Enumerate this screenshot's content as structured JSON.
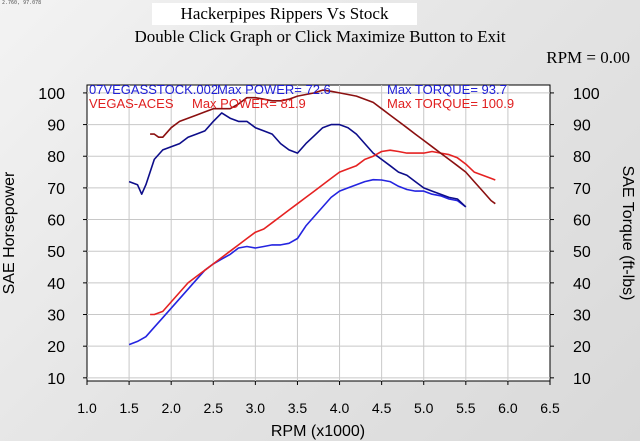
{
  "window": {
    "corner_label": "2.760, 97.078",
    "title": "Hackerpipes Rippers Vs Stock",
    "instruction": "Double Click Graph or Click Maximize Button to Exit",
    "rpm_label": "RPM =",
    "rpm_value": "0.00"
  },
  "chart_data": {
    "type": "line",
    "title": "Hackerpipes Rippers Vs Stock",
    "xlabel": "RPM (x1000)",
    "ylabel_left": "SAE Horsepower",
    "ylabel_right": "SAE Torque (ft-lbs)",
    "xlim": [
      1.0,
      6.5
    ],
    "ylim": [
      10,
      100
    ],
    "x_ticks": [
      "1.0",
      "1.5",
      "2.0",
      "2.5",
      "3.0",
      "3.5",
      "4.0",
      "4.5",
      "5.0",
      "5.5",
      "6.0",
      "6.5"
    ],
    "y_ticks": [
      "10",
      "20",
      "30",
      "40",
      "50",
      "60",
      "70",
      "80",
      "90",
      "100"
    ],
    "grid": true,
    "legend": [
      {
        "run": "07VEGASSTOCK.002",
        "power_text": "Max POWER= 72.6",
        "torque_text": "Max TORQUE= 93.7",
        "color": "#1f1fd6"
      },
      {
        "run": "VEGAS-ACES",
        "power_text": "Max POWER= 81.9",
        "torque_text": "Max TORQUE= 100.9",
        "color": "#e02020"
      }
    ],
    "series": [
      {
        "name": "07VEGASSTOCK.002 horsepower",
        "color": "#2424e0",
        "x": [
          1.5,
          1.6,
          1.7,
          1.8,
          1.9,
          2.0,
          2.1,
          2.2,
          2.3,
          2.4,
          2.5,
          2.6,
          2.7,
          2.8,
          2.9,
          3.0,
          3.1,
          3.2,
          3.3,
          3.4,
          3.5,
          3.6,
          3.7,
          3.8,
          3.9,
          4.0,
          4.1,
          4.2,
          4.3,
          4.4,
          4.5,
          4.6,
          4.7,
          4.8,
          4.9,
          5.0,
          5.1,
          5.2,
          5.3,
          5.4,
          5.5
        ],
        "y": [
          20.5,
          21.5,
          23,
          26,
          29,
          32,
          35,
          38,
          41,
          44,
          46,
          47.5,
          49,
          51,
          51.5,
          51,
          51.5,
          52,
          52,
          52.5,
          54,
          58,
          61,
          64,
          67,
          69,
          70,
          71,
          72,
          72.6,
          72.5,
          72,
          70.5,
          69.5,
          69,
          69,
          68,
          67.5,
          66.5,
          66,
          64
        ]
      },
      {
        "name": "07VEGASSTOCK.002 torque",
        "color": "#0d0d8a",
        "x": [
          1.5,
          1.6,
          1.65,
          1.7,
          1.8,
          1.9,
          2.0,
          2.1,
          2.2,
          2.3,
          2.4,
          2.5,
          2.6,
          2.7,
          2.8,
          2.9,
          3.0,
          3.1,
          3.2,
          3.3,
          3.4,
          3.5,
          3.6,
          3.7,
          3.8,
          3.9,
          4.0,
          4.1,
          4.2,
          4.3,
          4.4,
          4.5,
          4.6,
          4.7,
          4.8,
          4.9,
          5.0,
          5.1,
          5.2,
          5.3,
          5.4,
          5.5
        ],
        "y": [
          72,
          71,
          68,
          71,
          79,
          82,
          83,
          84,
          86,
          87,
          88,
          91,
          93.7,
          92,
          91,
          91,
          89,
          88,
          87,
          84,
          82,
          81,
          84,
          86.5,
          89,
          90,
          90,
          89,
          87,
          84,
          81,
          79,
          77,
          75,
          74,
          72,
          70,
          69,
          68,
          67,
          66.5,
          64
        ]
      },
      {
        "name": "VEGAS-ACES horsepower",
        "color": "#e52222",
        "x": [
          1.75,
          1.8,
          1.9,
          2.0,
          2.1,
          2.2,
          2.3,
          2.4,
          2.5,
          2.6,
          2.7,
          2.8,
          2.9,
          3.0,
          3.1,
          3.2,
          3.3,
          3.4,
          3.5,
          3.6,
          3.7,
          3.8,
          3.9,
          4.0,
          4.1,
          4.2,
          4.3,
          4.4,
          4.5,
          4.6,
          4.7,
          4.8,
          4.9,
          5.0,
          5.1,
          5.2,
          5.3,
          5.4,
          5.5,
          5.6,
          5.7,
          5.8,
          5.85
        ],
        "y": [
          30,
          30,
          31,
          34,
          37,
          40,
          42,
          44,
          46,
          48,
          50,
          52,
          54,
          56,
          57,
          59,
          61,
          63,
          65,
          67,
          69,
          71,
          73,
          75,
          76,
          77,
          79,
          80,
          81.5,
          81.9,
          81.5,
          81,
          81,
          81,
          81.5,
          81,
          80.5,
          79.5,
          77.5,
          75,
          74,
          73,
          72.5
        ]
      },
      {
        "name": "VEGAS-ACES torque",
        "color": "#8b1010",
        "x": [
          1.75,
          1.8,
          1.85,
          1.9,
          2.0,
          2.1,
          2.2,
          2.3,
          2.4,
          2.5,
          2.6,
          2.7,
          2.8,
          2.9,
          3.0,
          3.1,
          3.2,
          3.3,
          3.4,
          3.5,
          3.6,
          3.7,
          3.8,
          3.9,
          4.0,
          4.1,
          4.2,
          4.3,
          4.4,
          4.5,
          4.6,
          4.7,
          4.8,
          4.9,
          5.0,
          5.1,
          5.2,
          5.3,
          5.4,
          5.5,
          5.6,
          5.7,
          5.8,
          5.85
        ],
        "y": [
          87,
          87,
          86,
          86,
          89,
          91,
          92,
          93,
          94,
          95,
          95,
          95,
          96.5,
          98.5,
          98.5,
          98,
          97.5,
          97.5,
          98,
          99,
          99.5,
          100,
          100.9,
          100.5,
          100,
          99.5,
          99,
          98,
          97,
          95,
          93,
          91,
          89,
          87,
          85,
          83,
          81,
          79,
          77,
          75,
          72,
          69,
          66,
          65
        ]
      }
    ]
  }
}
